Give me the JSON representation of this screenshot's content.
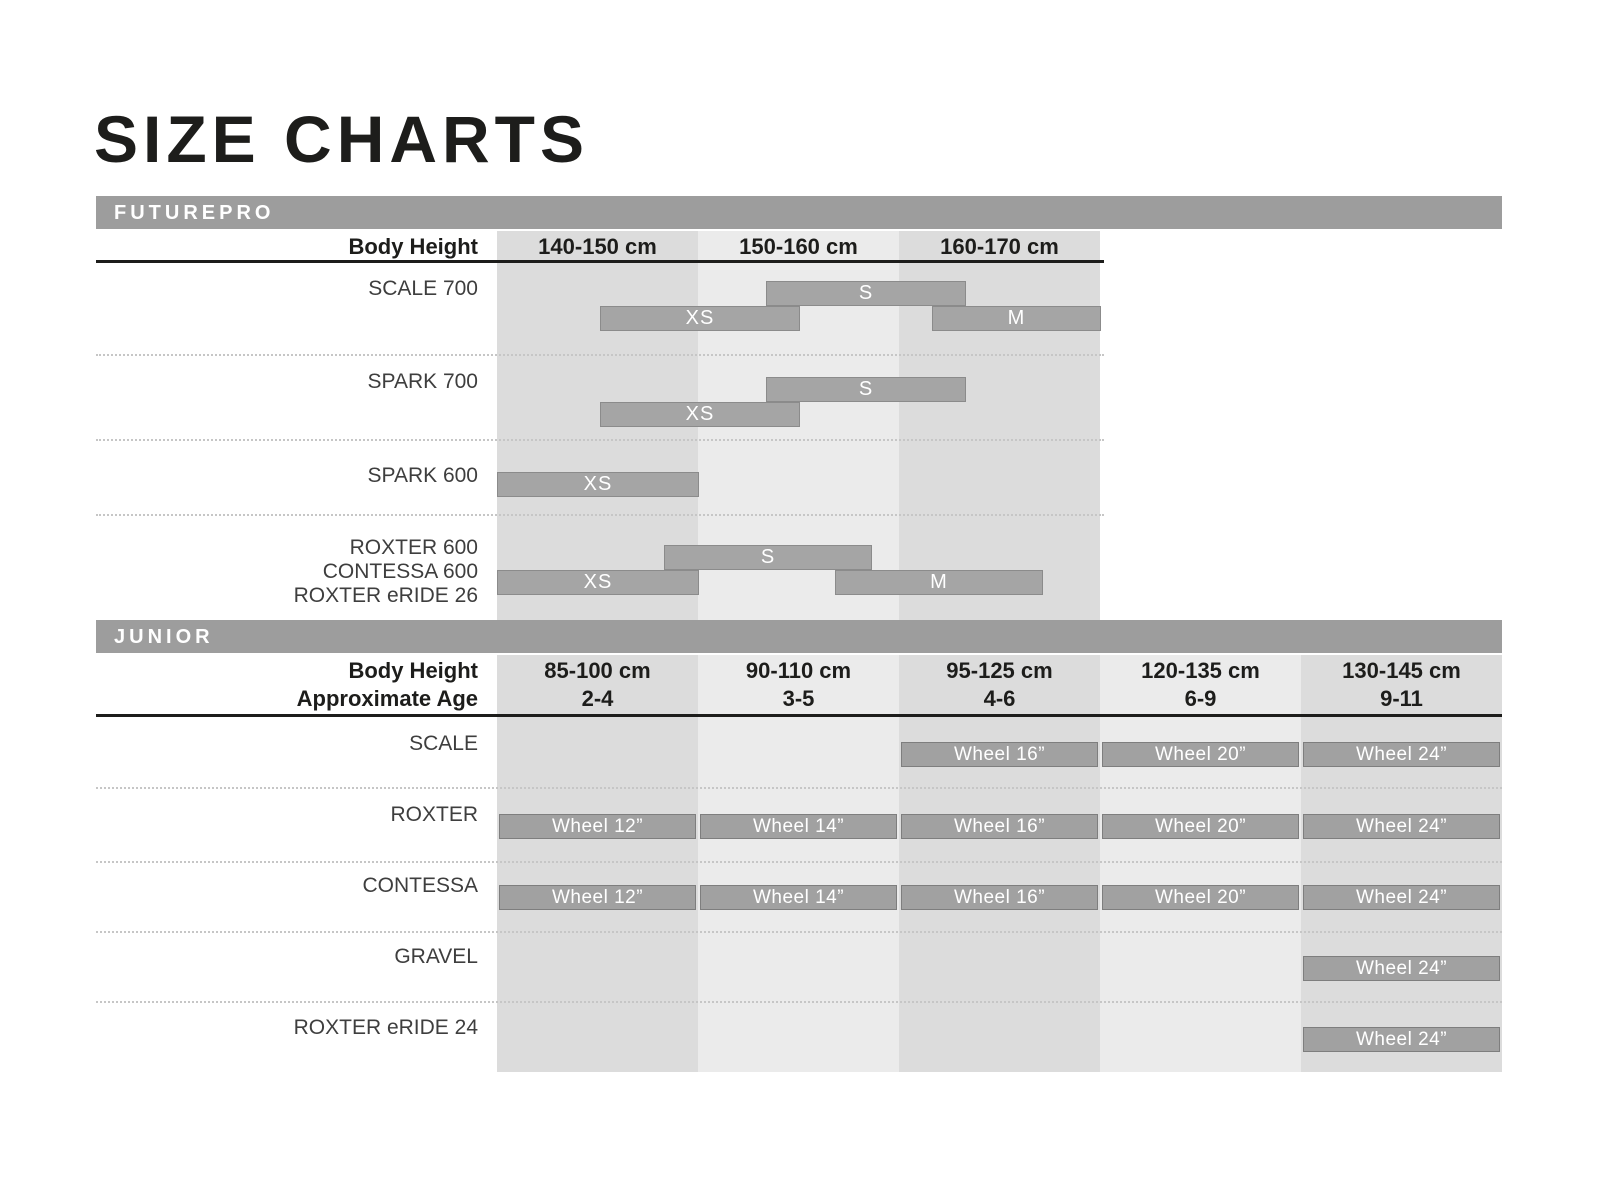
{
  "title": "SIZE CHARTS",
  "futurepro": {
    "section_label": "FUTUREPRO",
    "header": {
      "label": "Body Height",
      "columns": [
        "140-150 cm",
        "150-160 cm",
        "160-170 cm"
      ]
    },
    "rows": [
      {
        "labels": [
          "SCALE 700"
        ],
        "bars": [
          {
            "label": "S"
          },
          {
            "label": "XS"
          },
          {
            "label": "M"
          }
        ]
      },
      {
        "labels": [
          "SPARK 700"
        ],
        "bars": [
          {
            "label": "S"
          },
          {
            "label": "XS"
          }
        ]
      },
      {
        "labels": [
          "SPARK 600"
        ],
        "bars": [
          {
            "label": "XS"
          }
        ]
      },
      {
        "labels": [
          "ROXTER 600",
          "CONTESSA 600",
          "ROXTER eRIDE 26"
        ],
        "bars": [
          {
            "label": "S"
          },
          {
            "label": "XS"
          },
          {
            "label": "M"
          }
        ]
      }
    ]
  },
  "junior": {
    "section_label": "JUNIOR",
    "header": {
      "label_line1": "Body Height",
      "label_line2": "Approximate Age",
      "columns": [
        {
          "height": "85-100 cm",
          "age": "2-4"
        },
        {
          "height": "90-110 cm",
          "age": "3-5"
        },
        {
          "height": "95-125 cm",
          "age": "4-6"
        },
        {
          "height": "120-135 cm",
          "age": "6-9"
        },
        {
          "height": "130-145 cm",
          "age": "9-11"
        }
      ]
    },
    "rows": [
      {
        "label": "SCALE",
        "bars": [
          {
            "label": "Wheel 16”"
          },
          {
            "label": "Wheel 20”"
          },
          {
            "label": "Wheel 24”"
          }
        ]
      },
      {
        "label": "ROXTER",
        "bars": [
          {
            "label": "Wheel 12”"
          },
          {
            "label": "Wheel 14”"
          },
          {
            "label": "Wheel 16”"
          },
          {
            "label": "Wheel 20”"
          },
          {
            "label": "Wheel 24”"
          }
        ]
      },
      {
        "label": "CONTESSA",
        "bars": [
          {
            "label": "Wheel 12”"
          },
          {
            "label": "Wheel 14”"
          },
          {
            "label": "Wheel 16”"
          },
          {
            "label": "Wheel 20”"
          },
          {
            "label": "Wheel 24”"
          }
        ]
      },
      {
        "label": "GRAVEL",
        "bars": [
          {
            "label": "Wheel 24”"
          }
        ]
      },
      {
        "label": "ROXTER eRIDE 24",
        "bars": [
          {
            "label": "Wheel 24”"
          }
        ]
      }
    ]
  },
  "colors": {
    "section_bar": "#9d9d9d",
    "band_dark": "#dcdcdc",
    "band_light": "#ebebeb",
    "bar_fill": "#a5a5a5",
    "bar_border": "#8b8b8b",
    "wheel_fill": "#a1a1a1",
    "wheel_border": "#7e7e7e",
    "rule": "#1d1d1b",
    "text": "#1d1d1b",
    "label_text": "#3e3e3e"
  },
  "chart_data": [
    {
      "type": "bar",
      "variant": "horizontal-range",
      "title": "FUTUREPRO",
      "xlabel": "Body Height",
      "x_tick_labels": [
        "140-150 cm",
        "150-160 cm",
        "160-170 cm"
      ],
      "xlim_cm": [
        140,
        170
      ],
      "grid": "shaded-column-bands",
      "legend_position": "none",
      "series": [
        {
          "name": "SCALE 700",
          "ranges": [
            {
              "size": "S",
              "body_height_cm": [
                153.5,
                163.5
              ]
            },
            {
              "size": "XS",
              "body_height_cm": [
                145,
                155
              ]
            },
            {
              "size": "M",
              "body_height_cm": [
                161.5,
                170
              ]
            }
          ]
        },
        {
          "name": "SPARK 700",
          "ranges": [
            {
              "size": "S",
              "body_height_cm": [
                153.5,
                163.5
              ]
            },
            {
              "size": "XS",
              "body_height_cm": [
                145,
                155
              ]
            }
          ]
        },
        {
          "name": "SPARK 600",
          "ranges": [
            {
              "size": "XS",
              "body_height_cm": [
                140,
                150
              ]
            }
          ]
        },
        {
          "name": "ROXTER 600 / CONTESSA 600 / ROXTER eRIDE 26",
          "ranges": [
            {
              "size": "S",
              "body_height_cm": [
                148.5,
                158.5
              ]
            },
            {
              "size": "XS",
              "body_height_cm": [
                140,
                150
              ]
            },
            {
              "size": "M",
              "body_height_cm": [
                157,
                167
              ]
            }
          ]
        }
      ]
    },
    {
      "type": "table",
      "title": "JUNIOR",
      "column_headers": [
        {
          "body_height": "85-100 cm",
          "approximate_age": "2-4"
        },
        {
          "body_height": "90-110 cm",
          "approximate_age": "3-5"
        },
        {
          "body_height": "95-125 cm",
          "approximate_age": "4-6"
        },
        {
          "body_height": "120-135 cm",
          "approximate_age": "6-9"
        },
        {
          "body_height": "130-145 cm",
          "approximate_age": "9-11"
        }
      ],
      "rows": [
        {
          "model": "SCALE",
          "cells": [
            null,
            null,
            "Wheel 16”",
            "Wheel 20”",
            "Wheel 24”"
          ]
        },
        {
          "model": "ROXTER",
          "cells": [
            "Wheel 12”",
            "Wheel 14”",
            "Wheel 16”",
            "Wheel 20”",
            "Wheel 24”"
          ]
        },
        {
          "model": "CONTESSA",
          "cells": [
            "Wheel 12”",
            "Wheel 14”",
            "Wheel 16”",
            "Wheel 20”",
            "Wheel 24”"
          ]
        },
        {
          "model": "GRAVEL",
          "cells": [
            null,
            null,
            null,
            null,
            "Wheel 24”"
          ]
        },
        {
          "model": "ROXTER eRIDE 24",
          "cells": [
            null,
            null,
            null,
            null,
            "Wheel 24”"
          ]
        }
      ]
    }
  ]
}
